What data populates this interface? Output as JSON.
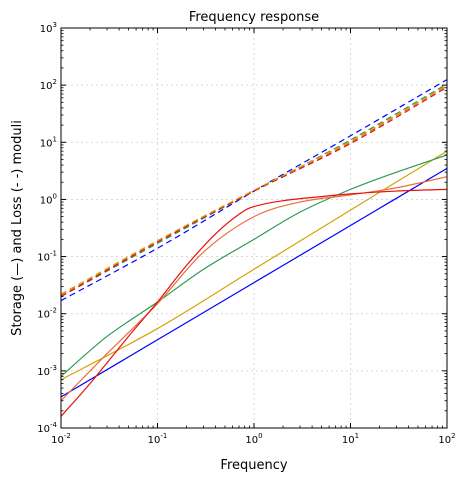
{
  "chart_data": {
    "type": "line",
    "title": "Frequency response",
    "xlabel": "Frequency",
    "ylabel": "Storage (—) and Loss (- -) moduli",
    "xscale": "log",
    "yscale": "log",
    "xlim": [
      0.01,
      100
    ],
    "ylim": [
      0.0001,
      1000
    ],
    "grid": true,
    "legend": "none",
    "x_ticks": [
      {
        "base": "10",
        "exp": "-2"
      },
      {
        "base": "10",
        "exp": "-1"
      },
      {
        "base": "10",
        "exp": "0"
      },
      {
        "base": "10",
        "exp": "1"
      },
      {
        "base": "10",
        "exp": "2"
      }
    ],
    "y_ticks": [
      {
        "base": "10",
        "exp": "-4"
      },
      {
        "base": "10",
        "exp": "-3"
      },
      {
        "base": "10",
        "exp": "-2"
      },
      {
        "base": "10",
        "exp": "-1"
      },
      {
        "base": "10",
        "exp": "0"
      },
      {
        "base": "10",
        "exp": "1"
      },
      {
        "base": "10",
        "exp": "2"
      },
      {
        "base": "10",
        "exp": "3"
      }
    ],
    "series": [
      {
        "kind": "storage",
        "color": "#0000ff",
        "x": [
          0.01,
          0.1,
          1,
          10,
          100
        ],
        "y": [
          0.00035,
          0.0035,
          0.035,
          0.35,
          3.5
        ]
      },
      {
        "kind": "storage",
        "color": "#d4a20a",
        "x": [
          0.01,
          0.1,
          1,
          10,
          100
        ],
        "y": [
          0.0007,
          0.0055,
          0.06,
          0.65,
          7
        ]
      },
      {
        "kind": "storage",
        "color": "#2a9b55",
        "x": [
          0.01,
          0.03,
          0.1,
          0.3,
          1,
          3,
          10,
          30,
          100
        ],
        "y": [
          0.0008,
          0.004,
          0.016,
          0.06,
          0.2,
          0.6,
          1.5,
          3,
          6
        ]
      },
      {
        "kind": "storage",
        "color": "#e8703a",
        "x": [
          0.01,
          0.03,
          0.1,
          0.3,
          1,
          3,
          10,
          30,
          100
        ],
        "y": [
          0.0003,
          0.002,
          0.015,
          0.12,
          0.5,
          0.9,
          1.2,
          1.6,
          2.5
        ]
      },
      {
        "kind": "storage",
        "color": "#e81010",
        "x": [
          0.01,
          0.02,
          0.05,
          0.1,
          0.2,
          0.4,
          0.7,
          1,
          2,
          5,
          10,
          30,
          100
        ],
        "y": [
          0.00016,
          0.0006,
          0.004,
          0.016,
          0.07,
          0.25,
          0.55,
          0.75,
          0.95,
          1.12,
          1.25,
          1.4,
          1.5
        ]
      },
      {
        "kind": "loss",
        "color": "#0000ff",
        "x": [
          0.01,
          0.1,
          1,
          10,
          100
        ],
        "y": [
          0.017,
          0.14,
          1.4,
          13,
          125
        ]
      },
      {
        "kind": "loss",
        "color": "#2a9b55",
        "x": [
          0.01,
          0.1,
          1,
          10,
          100
        ],
        "y": [
          0.02,
          0.17,
          1.4,
          11,
          105
        ]
      },
      {
        "kind": "loss",
        "color": "#e8703a",
        "x": [
          0.01,
          0.1,
          1,
          10,
          100
        ],
        "y": [
          0.021,
          0.18,
          1.4,
          10,
          98
        ]
      },
      {
        "kind": "loss",
        "color": "#e81010",
        "x": [
          0.01,
          0.1,
          1,
          10,
          100
        ],
        "y": [
          0.02,
          0.18,
          1.4,
          9.5,
          92
        ]
      },
      {
        "kind": "loss",
        "color": "#d4a20a",
        "x": [
          0.01,
          0.1,
          1,
          10,
          100
        ],
        "y": [
          0.022,
          0.19,
          1.45,
          10.5,
          100
        ]
      }
    ]
  }
}
